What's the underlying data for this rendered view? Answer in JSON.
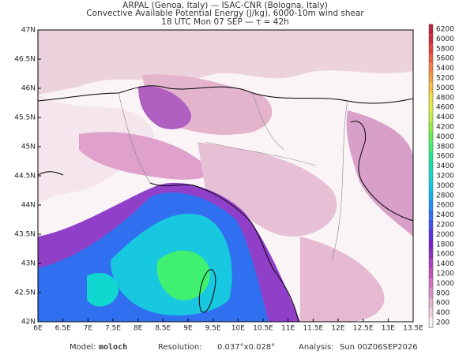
{
  "header": {
    "line1": "ARPAL (Genoa, Italy)  —  ISAC-CNR (Bologna, Italy)",
    "line2": "Convective Available Potential Energy (J/kg), 6000-10m wind shear",
    "line3": "18 UTC Mon 07 SEP  —  τ = 42h"
  },
  "map": {
    "lon_labels": [
      "6E",
      "6.5E",
      "7E",
      "7.5E",
      "8E",
      "8.5E",
      "9E",
      "9.5E",
      "10E",
      "10.5E",
      "11E",
      "11.5E",
      "12E",
      "12.5E",
      "13E",
      "13.5E"
    ],
    "lat_labels": [
      "42N",
      "42.5N",
      "43N",
      "43.5N",
      "44N",
      "44.5N",
      "45N",
      "45.5N",
      "46N",
      "46.5N",
      "47N"
    ]
  },
  "colorbar": {
    "levels": [
      200,
      400,
      600,
      800,
      1000,
      1200,
      1400,
      1600,
      1800,
      2000,
      2200,
      2400,
      2600,
      2800,
      3000,
      3200,
      3400,
      3600,
      3800,
      4000,
      4200,
      4400,
      4600,
      4800,
      5000,
      5200,
      5400,
      5600,
      5800,
      6000,
      6200
    ]
  },
  "footer": {
    "model_label": "Model:",
    "model": "moloch",
    "resolution_label": "Resolution:",
    "resolution": "0.037°x0.028°",
    "analysis_label": "Analysis:",
    "analysis": "Sun 00Z06SEP2026"
  }
}
